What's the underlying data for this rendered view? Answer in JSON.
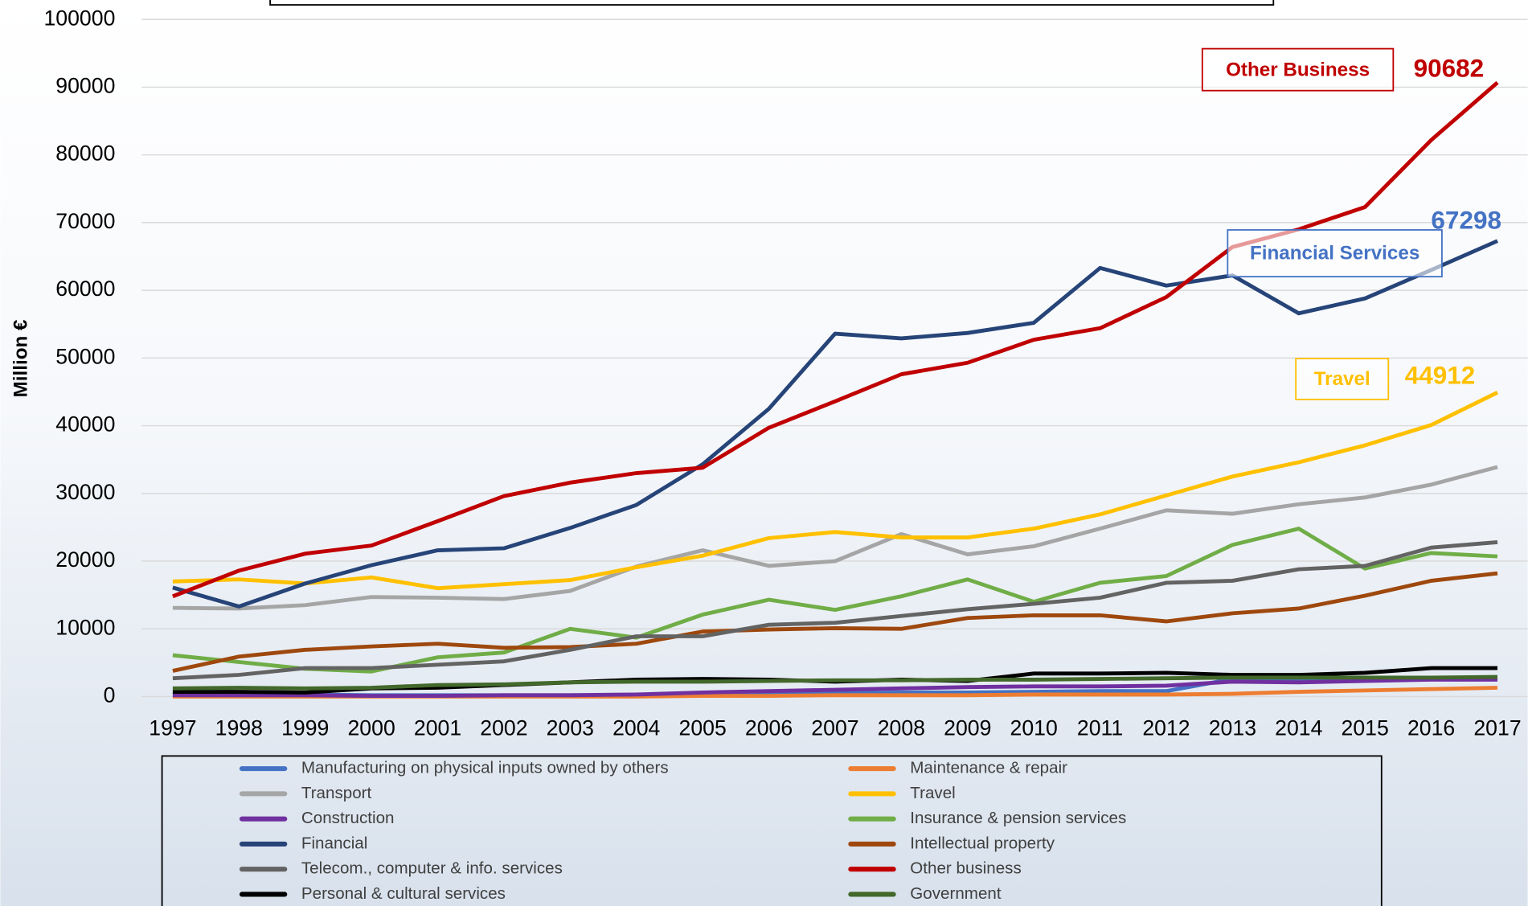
{
  "chart_data": {
    "type": "line",
    "ylabel": "Million €",
    "categories": [
      "1997",
      "1998",
      "1999",
      "2000",
      "2001",
      "2002",
      "2003",
      "2004",
      "2005",
      "2006",
      "2007",
      "2008",
      "2009",
      "2010",
      "2011",
      "2012",
      "2013",
      "2014",
      "2015",
      "2016",
      "2017"
    ],
    "ylim": [
      0,
      100000
    ],
    "yticks": [
      0,
      10000,
      20000,
      30000,
      40000,
      50000,
      60000,
      70000,
      80000,
      90000,
      100000
    ],
    "grid": true,
    "legend": "bottom",
    "series": [
      {
        "name": "Manufacturing on physical inputs owned by others",
        "color": "#4472c4",
        "values": [
          300,
          300,
          300,
          200,
          200,
          200,
          200,
          200,
          300,
          400,
          500,
          600,
          600,
          700,
          800,
          800,
          2600,
          2400,
          2500,
          2600,
          2700
        ]
      },
      {
        "name": "Maintenance & repair",
        "color": "#ed7d31",
        "values": [
          0,
          0,
          0,
          0,
          0,
          0,
          0,
          0,
          100,
          100,
          200,
          200,
          200,
          300,
          300,
          300,
          400,
          700,
          900,
          1100,
          1300
        ]
      },
      {
        "name": "Transport",
        "color": "#a5a5a5",
        "values": [
          13100,
          13000,
          13500,
          14700,
          14600,
          14400,
          15600,
          19200,
          21600,
          19300,
          20000,
          24000,
          21000,
          22200,
          24800,
          27500,
          27000,
          28400,
          29400,
          31300,
          33900
        ]
      },
      {
        "name": "Travel",
        "color": "#ffc000",
        "callout": "Travel",
        "values": [
          17000,
          17300,
          16700,
          17600,
          16000,
          16600,
          17200,
          19100,
          20800,
          23400,
          24300,
          23500,
          23500,
          24800,
          26900,
          29700,
          32500,
          34600,
          37100,
          40100,
          44912
        ]
      },
      {
        "name": "Construction",
        "color": "#7030a0",
        "values": [
          200,
          200,
          200,
          100,
          100,
          200,
          200,
          300,
          600,
          800,
          1000,
          1200,
          1400,
          1500,
          1500,
          1600,
          2200,
          2100,
          2300,
          2500,
          2500
        ]
      },
      {
        "name": "Insurance & pension services",
        "color": "#70ad47",
        "values": [
          6100,
          5100,
          4100,
          3700,
          5800,
          6500,
          10000,
          8700,
          12100,
          14300,
          12800,
          14800,
          17300,
          14000,
          16800,
          17800,
          22400,
          24800,
          18900,
          21200,
          20700
        ]
      },
      {
        "name": "Financial",
        "color": "#264478",
        "callout": "Financial Services",
        "values": [
          16100,
          13300,
          16700,
          19400,
          21600,
          21900,
          24900,
          28300,
          34300,
          42500,
          53600,
          52900,
          53700,
          55200,
          63300,
          60700,
          62200,
          56600,
          58800,
          63000,
          67298
        ]
      },
      {
        "name": "Intellectual property",
        "color": "#9e480e",
        "values": [
          3800,
          5900,
          6900,
          7400,
          7800,
          7200,
          7300,
          7800,
          9600,
          9900,
          10100,
          10000,
          11600,
          12000,
          12000,
          11100,
          12300,
          13000,
          14900,
          17100,
          18200
        ]
      },
      {
        "name": "Telecom., computer & info. services",
        "color": "#636363",
        "values": [
          2700,
          3200,
          4200,
          4200,
          4700,
          5200,
          6900,
          8900,
          8900,
          10600,
          10900,
          11900,
          12900,
          13700,
          14600,
          16800,
          17100,
          18800,
          19300,
          22000,
          22800
        ]
      },
      {
        "name": "Other business",
        "color": "#c00000",
        "callout": "Other Business",
        "values": [
          14800,
          18600,
          21100,
          22300,
          25900,
          29600,
          31600,
          33000,
          33800,
          39700,
          43600,
          47600,
          49300,
          52700,
          54400,
          59000,
          66400,
          69000,
          72300,
          82200,
          90682
        ]
      },
      {
        "name": "Personal & cultural services",
        "color": "#000000",
        "values": [
          700,
          700,
          600,
          1200,
          1300,
          1700,
          2100,
          2500,
          2600,
          2500,
          2200,
          2500,
          2300,
          3400,
          3400,
          3500,
          3200,
          3200,
          3500,
          4200,
          4200
        ]
      },
      {
        "name": "Government",
        "color": "#43682b",
        "values": [
          1200,
          1300,
          1200,
          1300,
          1700,
          1800,
          2100,
          2200,
          2200,
          2300,
          2400,
          2400,
          2500,
          2500,
          2600,
          2700,
          2800,
          2800,
          2800,
          2800,
          2900
        ]
      }
    ]
  }
}
